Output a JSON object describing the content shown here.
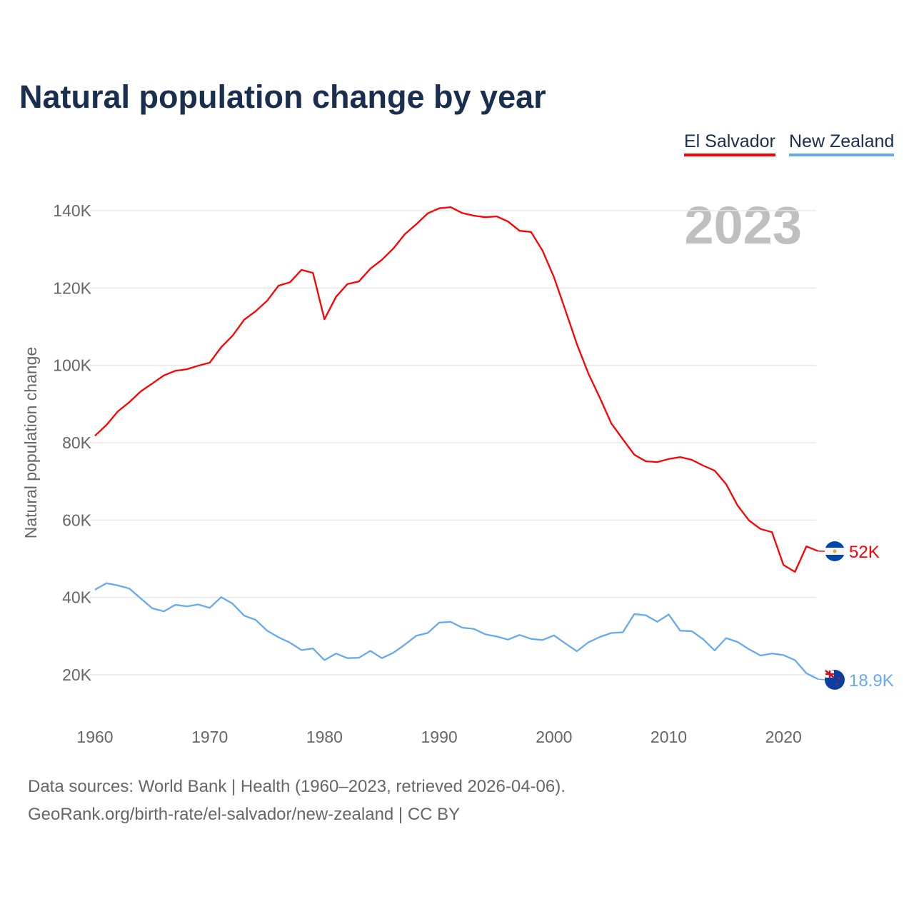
{
  "chart_data": {
    "type": "line",
    "title": "Natural population change by year",
    "ylabel": "Natural population change",
    "xlabel": "",
    "ylim": [
      10000,
      145000
    ],
    "xlim": [
      1960,
      2023
    ],
    "yticks": [
      20000,
      40000,
      60000,
      80000,
      100000,
      120000,
      140000
    ],
    "ytick_labels": [
      "20K",
      "40K",
      "60K",
      "80K",
      "100K",
      "120K",
      "140K"
    ],
    "xticks": [
      1960,
      1970,
      1980,
      1990,
      2000,
      2010,
      2020
    ],
    "xtick_labels": [
      "1960",
      "1970",
      "1980",
      "1990",
      "2000",
      "2010",
      "2020"
    ],
    "grid": true,
    "legend_position": "top-right",
    "year_label": "2023",
    "x": [
      1960,
      1961,
      1962,
      1963,
      1964,
      1965,
      1966,
      1967,
      1968,
      1969,
      1970,
      1971,
      1972,
      1973,
      1974,
      1975,
      1976,
      1977,
      1978,
      1979,
      1980,
      1981,
      1982,
      1983,
      1984,
      1985,
      1986,
      1987,
      1988,
      1989,
      1990,
      1991,
      1992,
      1993,
      1994,
      1995,
      1996,
      1997,
      1998,
      1999,
      2000,
      2001,
      2002,
      2003,
      2004,
      2005,
      2006,
      2007,
      2008,
      2009,
      2010,
      2011,
      2012,
      2013,
      2014,
      2015,
      2016,
      2017,
      2018,
      2019,
      2020,
      2021,
      2022,
      2023
    ],
    "series": [
      {
        "name": "El Salvador",
        "color": "#ff0000",
        "end_label": "52K",
        "flag": "el-salvador-flag",
        "values": [
          81800,
          84600,
          88100,
          90500,
          93300,
          95300,
          97400,
          98600,
          99000,
          99900,
          100700,
          104700,
          107700,
          111800,
          114000,
          116700,
          120600,
          121500,
          124700,
          123900,
          111900,
          117700,
          121000,
          121700,
          125000,
          127300,
          130200,
          133900,
          136500,
          139300,
          140600,
          140900,
          139400,
          138700,
          138300,
          138500,
          137200,
          134800,
          134500,
          129700,
          122800,
          114200,
          105500,
          97900,
          91600,
          85000,
          80900,
          76900,
          75200,
          75000,
          75800,
          76300,
          75600,
          74100,
          72800,
          69300,
          63800,
          59900,
          57700,
          56900,
          48400,
          46600,
          53200,
          52000
        ]
      },
      {
        "name": "New Zealand",
        "color": "#66aaee",
        "end_label": "18.9K",
        "flag": "new-zealand-flag",
        "values": [
          42000,
          43700,
          43100,
          42300,
          39700,
          37200,
          36400,
          38100,
          37700,
          38200,
          37300,
          40100,
          38400,
          35300,
          34200,
          31400,
          29700,
          28300,
          26400,
          26800,
          23800,
          25500,
          24300,
          24400,
          26200,
          24300,
          25700,
          27800,
          30100,
          30800,
          33500,
          33700,
          32200,
          31900,
          30500,
          29900,
          29100,
          30300,
          29300,
          29000,
          30200,
          28100,
          26100,
          28400,
          29800,
          30800,
          31000,
          35700,
          35400,
          33700,
          35600,
          31400,
          31300,
          29200,
          26300,
          29500,
          28500,
          26600,
          25000,
          25500,
          25100,
          23800,
          20400,
          18900
        ]
      }
    ]
  },
  "footer": {
    "line1": "Data sources: World Bank | Health (1960–2023, retrieved 2026-04-06).",
    "line2": "GeoRank.org/birth-rate/el-salvador/new-zealand | CC BY"
  }
}
